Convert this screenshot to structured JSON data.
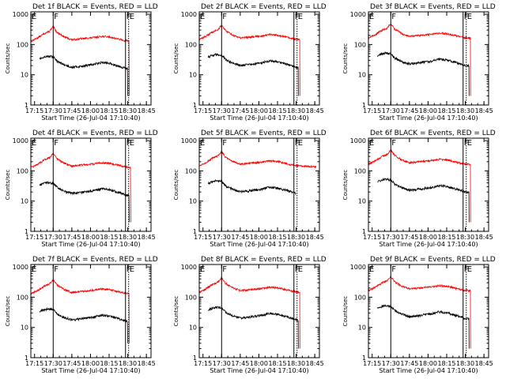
{
  "chart_data": [
    {
      "type": "line",
      "title": "Det 1f BLACK = Events, RED = LLD",
      "xlabel": "Start Time (26-Jul-04 17:10:40)",
      "ylabel": "Counts/sec",
      "markers": [
        {
          "label": "E",
          "t": 17.2
        },
        {
          "label": "F",
          "t": 17.5
        },
        {
          "label": "E",
          "t": 18.512
        },
        {
          "label": "F",
          "t": 18.47
        }
      ],
      "cuts": [
        {
          "series": "events",
          "t": 18.5,
          "to": 2
        },
        {
          "series": "lld",
          "t": 18.52,
          "to": 2
        }
      ]
    },
    {
      "type": "line",
      "title": "Det 2f BLACK = Events, RED = LLD",
      "xlabel": "Start Time (26-Jul-04 17:10:40)",
      "ylabel": "Counts/sec",
      "markers": [
        {
          "label": "E",
          "t": 17.2
        },
        {
          "label": "F",
          "t": 17.5
        },
        {
          "label": "E",
          "t": 18.512
        },
        {
          "label": "F",
          "t": 18.47
        }
      ],
      "cuts": [
        {
          "series": "events",
          "t": 18.53,
          "to": 2
        },
        {
          "series": "lld",
          "t": 18.55,
          "to": 2
        }
      ]
    },
    {
      "type": "line",
      "title": "Det 3f BLACK = Events, RED = LLD",
      "xlabel": "Start Time (26-Jul-04 17:10:40)",
      "ylabel": "Counts/sec",
      "markers": [
        {
          "label": "E",
          "t": 17.2
        },
        {
          "label": "F",
          "t": 17.5
        },
        {
          "label": "E",
          "t": 18.512
        },
        {
          "label": "F",
          "t": 18.47
        }
      ],
      "cuts": [
        {
          "series": "events",
          "t": 18.55,
          "to": 2
        },
        {
          "series": "lld",
          "t": 18.57,
          "to": 2
        }
      ]
    },
    {
      "type": "line",
      "title": "Det 4f BLACK = Events, RED = LLD",
      "xlabel": "Start Time (26-Jul-04 17:10:40)",
      "ylabel": "Counts/sec",
      "markers": [
        {
          "label": "E",
          "t": 17.2
        },
        {
          "label": "F",
          "t": 17.5
        },
        {
          "label": "E",
          "t": 18.512
        },
        {
          "label": "F",
          "t": 18.47
        }
      ],
      "cuts": [
        {
          "series": "events",
          "t": 18.52,
          "to": 2
        },
        {
          "series": "lld",
          "t": 18.54,
          "to": 2
        }
      ]
    },
    {
      "type": "line",
      "title": "Det 5f BLACK = Events, RED = LLD",
      "xlabel": "Start Time (26-Jul-04 17:10:40)",
      "ylabel": "Counts/sec",
      "markers": [
        {
          "label": "E",
          "t": 17.2
        },
        {
          "label": "F",
          "t": 17.5
        },
        {
          "label": "E",
          "t": 18.512
        },
        {
          "label": "F",
          "t": 18.47
        }
      ],
      "cuts": []
    },
    {
      "type": "line",
      "title": "Det 6f BLACK = Events, RED = LLD",
      "xlabel": "Start Time (26-Jul-04 17:10:40)",
      "ylabel": "Counts/sec",
      "markers": [
        {
          "label": "E",
          "t": 17.2
        },
        {
          "label": "F",
          "t": 17.5
        },
        {
          "label": "E",
          "t": 18.512
        },
        {
          "label": "F",
          "t": 18.47
        }
      ],
      "cuts": [
        {
          "series": "events",
          "t": 18.55,
          "to": 2
        },
        {
          "series": "lld",
          "t": 18.57,
          "to": 2
        }
      ]
    },
    {
      "type": "line",
      "title": "Det 7f BLACK = Events, RED = LLD",
      "xlabel": "Start Time (26-Jul-04 17:10:40)",
      "ylabel": "Counts/sec",
      "markers": [
        {
          "label": "E",
          "t": 17.2
        },
        {
          "label": "F",
          "t": 17.5
        },
        {
          "label": "E",
          "t": 18.512
        },
        {
          "label": "F",
          "t": 18.47
        }
      ],
      "cuts": [
        {
          "series": "events",
          "t": 18.5,
          "to": 3
        },
        {
          "series": "lld",
          "t": 18.52,
          "to": 3
        }
      ]
    },
    {
      "type": "line",
      "title": "Det 8f BLACK = Events, RED = LLD",
      "xlabel": "Start Time (26-Jul-04 17:10:40)",
      "ylabel": "Counts/sec",
      "markers": [
        {
          "label": "E",
          "t": 17.2
        },
        {
          "label": "F",
          "t": 17.5
        },
        {
          "label": "E",
          "t": 18.512
        },
        {
          "label": "F",
          "t": 18.47
        }
      ],
      "cuts": [
        {
          "series": "events",
          "t": 18.53,
          "to": 2
        },
        {
          "series": "lld",
          "t": 18.55,
          "to": 2
        }
      ]
    },
    {
      "type": "line",
      "title": "Det 9f BLACK = Events, RED = LLD",
      "xlabel": "Start Time (26-Jul-04 17:10:40)",
      "ylabel": "Counts/sec",
      "markers": [
        {
          "label": "E",
          "t": 17.2
        },
        {
          "label": "F",
          "t": 17.5
        },
        {
          "label": "E",
          "t": 18.512
        },
        {
          "label": "F",
          "t": 18.47
        }
      ],
      "cuts": [
        {
          "series": "events",
          "t": 18.55,
          "to": 2
        },
        {
          "series": "lld",
          "t": 18.57,
          "to": 2
        }
      ]
    }
  ],
  "shared_axes": {
    "x_ticks": [
      {
        "label": "17:15",
        "t": 17.25
      },
      {
        "label": "17:30",
        "t": 17.5
      },
      {
        "label": "17:45",
        "t": 17.75
      },
      {
        "label": "18:00",
        "t": 18.0
      },
      {
        "label": "18:15",
        "t": 18.25
      },
      {
        "label": "18:30",
        "t": 18.5
      },
      {
        "label": "18:45",
        "t": 18.75
      }
    ],
    "xlim": [
      17.2,
      18.812
    ],
    "y_ticks": [
      {
        "label": "1",
        "v": 1
      },
      {
        "label": "10",
        "v": 10
      },
      {
        "label": "100",
        "v": 100
      },
      {
        "label": "1000",
        "v": 1000
      }
    ],
    "ylim": [
      1,
      1200
    ],
    "yscale": "log"
  },
  "series_profiles": {
    "lld": {
      "color": "#ff0000",
      "points": [
        [
          17.2,
          150
        ],
        [
          17.3,
          200
        ],
        [
          17.38,
          270
        ],
        [
          17.45,
          320
        ],
        [
          17.5,
          450
        ],
        [
          17.55,
          300
        ],
        [
          17.65,
          210
        ],
        [
          17.75,
          170
        ],
        [
          17.85,
          180
        ],
        [
          17.95,
          190
        ],
        [
          18.05,
          200
        ],
        [
          18.15,
          220
        ],
        [
          18.25,
          210
        ],
        [
          18.35,
          185
        ],
        [
          18.45,
          160
        ],
        [
          18.55,
          150
        ],
        [
          18.75,
          140
        ]
      ]
    },
    "events": {
      "color": "#000000",
      "points": [
        [
          17.32,
          40
        ],
        [
          17.42,
          48
        ],
        [
          17.5,
          46
        ],
        [
          17.56,
          32
        ],
        [
          17.65,
          25
        ],
        [
          17.75,
          21
        ],
        [
          17.85,
          22
        ],
        [
          17.95,
          24
        ],
        [
          18.05,
          26
        ],
        [
          18.15,
          30
        ],
        [
          18.25,
          28
        ],
        [
          18.35,
          24
        ],
        [
          18.45,
          20
        ],
        [
          18.5,
          18
        ]
      ]
    }
  }
}
